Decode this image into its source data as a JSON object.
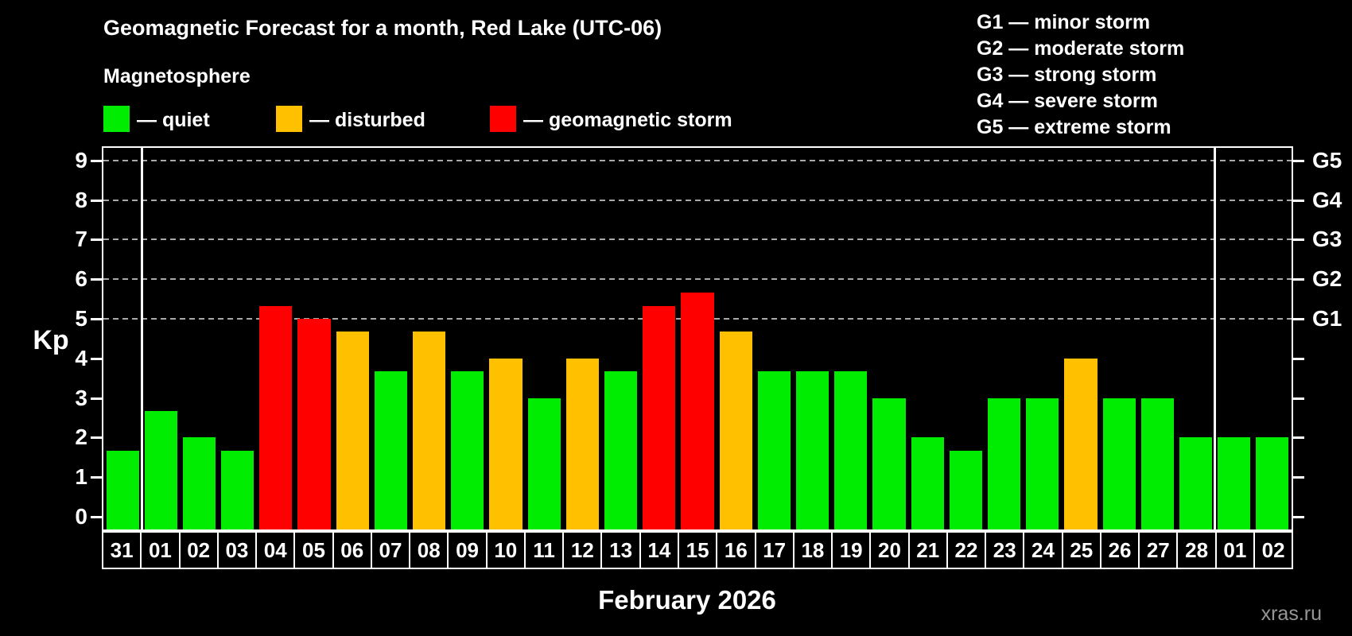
{
  "header": {
    "title": "Geomagnetic Forecast for a month, Red Lake (UTC-06)",
    "subtitle": "Magnetosphere"
  },
  "legend": {
    "items": [
      {
        "key": "quiet",
        "label": "— quiet"
      },
      {
        "key": "disturbed",
        "label": "— disturbed"
      },
      {
        "key": "storm",
        "label": "— geomagnetic storm"
      }
    ]
  },
  "g_legend": {
    "lines": [
      "G1 — minor storm",
      "G2 — moderate storm",
      "G3 — strong storm",
      "G4 — severe storm",
      "G5 — extreme storm"
    ]
  },
  "colors": {
    "quiet": "#00EC00",
    "disturbed": "#FFC000",
    "storm": "#FF0000",
    "background": "#000000",
    "axis": "#FFFFFF",
    "grid": "#A8A8A8",
    "watermark": "#969696"
  },
  "chart_data": {
    "type": "bar",
    "title": "Geomagnetic Forecast for a month, Red Lake (UTC-06)",
    "subtitle": "Magnetosphere",
    "ylabel": "Kp",
    "xlabel": "February 2026",
    "ylim": [
      -0.35,
      9.35
    ],
    "yticks": [
      0,
      1,
      2,
      3,
      4,
      5,
      6,
      7,
      8,
      9
    ],
    "grid_kp": [
      5,
      6,
      7,
      8,
      9
    ],
    "right_axis": [
      {
        "kp": 5,
        "label": "G1"
      },
      {
        "kp": 6,
        "label": "G2"
      },
      {
        "kp": 7,
        "label": "G3"
      },
      {
        "kp": 8,
        "label": "G4"
      },
      {
        "kp": 9,
        "label": "G5"
      }
    ],
    "legend_position": "top-left",
    "grid": "dashed horizontal at Kp 5-9",
    "month_separators_after_index": [
      0,
      28
    ],
    "bars": [
      {
        "date": "31",
        "kp": 1.67,
        "status": "quiet"
      },
      {
        "date": "01",
        "kp": 2.67,
        "status": "quiet"
      },
      {
        "date": "02",
        "kp": 2.0,
        "status": "quiet"
      },
      {
        "date": "03",
        "kp": 1.67,
        "status": "quiet"
      },
      {
        "date": "04",
        "kp": 5.33,
        "status": "storm"
      },
      {
        "date": "05",
        "kp": 5.0,
        "status": "storm"
      },
      {
        "date": "06",
        "kp": 4.67,
        "status": "disturbed"
      },
      {
        "date": "07",
        "kp": 3.67,
        "status": "quiet"
      },
      {
        "date": "08",
        "kp": 4.67,
        "status": "disturbed"
      },
      {
        "date": "09",
        "kp": 3.67,
        "status": "quiet"
      },
      {
        "date": "10",
        "kp": 4.0,
        "status": "disturbed"
      },
      {
        "date": "11",
        "kp": 3.0,
        "status": "quiet"
      },
      {
        "date": "12",
        "kp": 4.0,
        "status": "disturbed"
      },
      {
        "date": "13",
        "kp": 3.67,
        "status": "quiet"
      },
      {
        "date": "14",
        "kp": 5.33,
        "status": "storm"
      },
      {
        "date": "15",
        "kp": 5.67,
        "status": "storm"
      },
      {
        "date": "16",
        "kp": 4.67,
        "status": "disturbed"
      },
      {
        "date": "17",
        "kp": 3.67,
        "status": "quiet"
      },
      {
        "date": "18",
        "kp": 3.67,
        "status": "quiet"
      },
      {
        "date": "19",
        "kp": 3.67,
        "status": "quiet"
      },
      {
        "date": "20",
        "kp": 3.0,
        "status": "quiet"
      },
      {
        "date": "21",
        "kp": 2.0,
        "status": "quiet"
      },
      {
        "date": "22",
        "kp": 1.67,
        "status": "quiet"
      },
      {
        "date": "23",
        "kp": 3.0,
        "status": "quiet"
      },
      {
        "date": "24",
        "kp": 3.0,
        "status": "quiet"
      },
      {
        "date": "25",
        "kp": 4.0,
        "status": "disturbed"
      },
      {
        "date": "26",
        "kp": 3.0,
        "status": "quiet"
      },
      {
        "date": "27",
        "kp": 3.0,
        "status": "quiet"
      },
      {
        "date": "28",
        "kp": 2.0,
        "status": "quiet"
      },
      {
        "date": "01",
        "kp": 2.0,
        "status": "quiet"
      },
      {
        "date": "02",
        "kp": 2.0,
        "status": "quiet"
      }
    ]
  },
  "footer": {
    "month_label": "February 2026",
    "watermark": "xras.ru"
  }
}
